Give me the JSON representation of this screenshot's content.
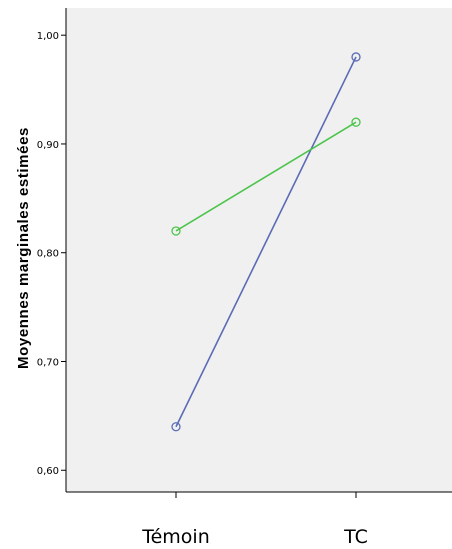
{
  "chart_data": {
    "type": "line",
    "categories": [
      "Témoin",
      "TC"
    ],
    "series": [
      {
        "values": [
          0.64,
          0.98
        ],
        "color": "#5b6bb5"
      },
      {
        "values": [
          0.82,
          0.92
        ],
        "color": "#4cc44c"
      }
    ],
    "ylabel": "Moyennes marginales estimées",
    "xlabel": "",
    "ylim": [
      0.58,
      1.025
    ],
    "yticks": [
      {
        "value": 0.6,
        "label": "0,60"
      },
      {
        "value": 0.7,
        "label": "0,70"
      },
      {
        "value": 0.8,
        "label": "0,80"
      },
      {
        "value": 0.9,
        "label": "0,90"
      },
      {
        "value": 1.0,
        "label": "1,00"
      }
    ],
    "markers": "open-circle",
    "grid": false,
    "legend": "none",
    "plot_background": "#f0f0f0"
  }
}
